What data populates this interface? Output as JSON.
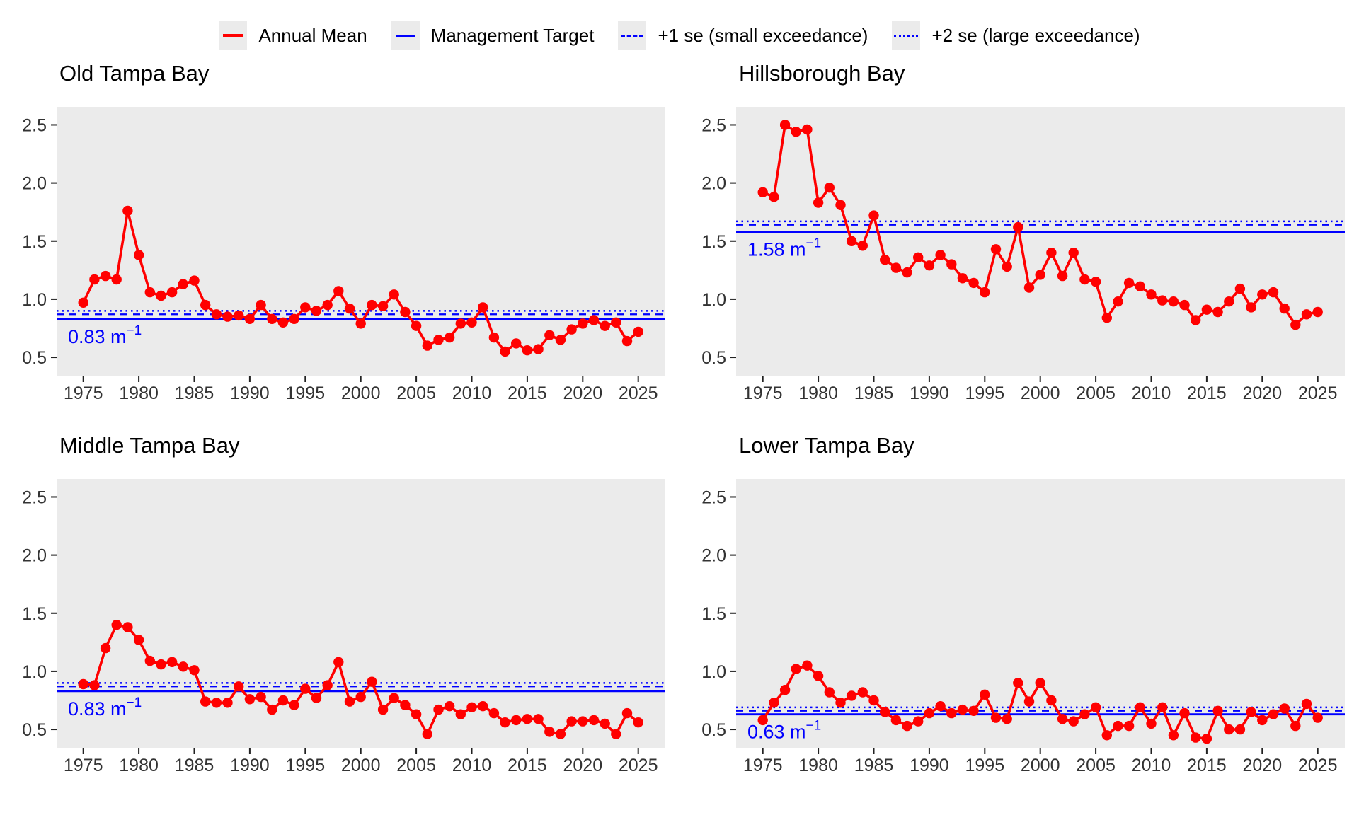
{
  "legend": {
    "items": [
      {
        "label": "Annual Mean",
        "style": "red-solid"
      },
      {
        "label": "Management Target",
        "style": "blue-solid"
      },
      {
        "label": "+1 se (small exceedance)",
        "style": "blue-dashed"
      },
      {
        "label": "+2 se (large exceedance)",
        "style": "blue-dotted"
      }
    ]
  },
  "colors": {
    "annual_mean": "#ff0000",
    "management": "#0000ff",
    "panel_bg": "#ebebeb",
    "tick_text": "#333333"
  },
  "chart_data": {
    "type": "line",
    "x_ticks": [
      1975,
      1980,
      1985,
      1990,
      1995,
      2000,
      2005,
      2010,
      2015,
      2020,
      2025
    ],
    "y_ticks": [
      {
        "v": 0.5,
        "label": "0.5"
      },
      {
        "v": 1.0,
        "label": "1.0"
      },
      {
        "v": 1.5,
        "label": "1.5"
      },
      {
        "v": 2.0,
        "label": "2.0"
      },
      {
        "v": 2.5,
        "label": "2.5"
      }
    ],
    "ylim": [
      0.35,
      2.66
    ],
    "xlim": [
      1972.6,
      2027.4
    ],
    "legend_position": "top",
    "grid": false,
    "years": [
      1975,
      1976,
      1977,
      1978,
      1979,
      1980,
      1981,
      1982,
      1983,
      1984,
      1985,
      1986,
      1987,
      1988,
      1989,
      1990,
      1991,
      1992,
      1993,
      1994,
      1995,
      1996,
      1997,
      1998,
      1999,
      2000,
      2001,
      2002,
      2003,
      2004,
      2005,
      2006,
      2007,
      2008,
      2009,
      2010,
      2011,
      2012,
      2013,
      2014,
      2015,
      2016,
      2017,
      2018,
      2019,
      2020,
      2021,
      2022,
      2023,
      2024,
      2025
    ],
    "panels": [
      {
        "title": "Old Tampa Bay",
        "target": 0.83,
        "plus1_se": 0.87,
        "plus2_se": 0.9,
        "target_label": "0.83 m",
        "target_exp": "−1",
        "values": [
          0.97,
          1.17,
          1.2,
          1.17,
          1.76,
          1.38,
          1.06,
          1.03,
          1.06,
          1.13,
          1.16,
          0.95,
          0.87,
          0.85,
          0.86,
          0.83,
          0.95,
          0.83,
          0.8,
          0.83,
          0.93,
          0.9,
          0.95,
          1.07,
          0.92,
          0.79,
          0.95,
          0.94,
          1.04,
          0.89,
          0.77,
          0.6,
          0.65,
          0.67,
          0.79,
          0.8,
          0.93,
          0.67,
          0.55,
          0.62,
          0.56,
          0.57,
          0.69,
          0.65,
          0.74,
          0.79,
          0.82,
          0.77,
          0.8,
          0.64,
          0.72
        ]
      },
      {
        "title": "Hillsborough Bay",
        "target": 1.58,
        "plus1_se": 1.64,
        "plus2_se": 1.67,
        "target_label": "1.58 m",
        "target_exp": "−1",
        "values": [
          1.92,
          1.88,
          2.5,
          2.44,
          2.46,
          1.83,
          1.96,
          1.81,
          1.5,
          1.46,
          1.72,
          1.34,
          1.27,
          1.23,
          1.36,
          1.29,
          1.38,
          1.3,
          1.18,
          1.14,
          1.06,
          1.43,
          1.28,
          1.62,
          1.1,
          1.21,
          1.4,
          1.2,
          1.4,
          1.17,
          1.15,
          0.84,
          0.98,
          1.14,
          1.11,
          1.04,
          0.99,
          0.98,
          0.95,
          0.82,
          0.91,
          0.89,
          0.98,
          1.09,
          0.93,
          1.04,
          1.06,
          0.92,
          0.78,
          0.87,
          0.89
        ]
      },
      {
        "title": "Middle Tampa Bay",
        "target": 0.83,
        "plus1_se": 0.87,
        "plus2_se": 0.9,
        "target_label": "0.83 m",
        "target_exp": "−1",
        "values": [
          0.89,
          0.88,
          1.2,
          1.4,
          1.38,
          1.27,
          1.09,
          1.06,
          1.08,
          1.04,
          1.01,
          0.74,
          0.73,
          0.73,
          0.87,
          0.76,
          0.78,
          0.67,
          0.75,
          0.71,
          0.85,
          0.77,
          0.88,
          1.08,
          0.74,
          0.78,
          0.91,
          0.67,
          0.77,
          0.71,
          0.63,
          0.46,
          0.67,
          0.7,
          0.63,
          0.69,
          0.7,
          0.64,
          0.56,
          0.58,
          0.59,
          0.59,
          0.48,
          0.46,
          0.57,
          0.57,
          0.58,
          0.55,
          0.46,
          0.64,
          0.56
        ]
      },
      {
        "title": "Lower Tampa Bay",
        "target": 0.63,
        "plus1_se": 0.66,
        "plus2_se": 0.69,
        "target_label": "0.63 m",
        "target_exp": "−1",
        "values": [
          0.58,
          0.73,
          0.84,
          1.02,
          1.05,
          0.96,
          0.82,
          0.73,
          0.79,
          0.82,
          0.75,
          0.65,
          0.58,
          0.53,
          0.57,
          0.64,
          0.7,
          0.64,
          0.67,
          0.66,
          0.8,
          0.6,
          0.59,
          0.9,
          0.74,
          0.9,
          0.75,
          0.59,
          0.57,
          0.63,
          0.69,
          0.45,
          0.53,
          0.53,
          0.69,
          0.55,
          0.69,
          0.45,
          0.64,
          0.43,
          0.42,
          0.66,
          0.5,
          0.5,
          0.65,
          0.58,
          0.63,
          0.68,
          0.53,
          0.72,
          0.6
        ]
      }
    ]
  }
}
